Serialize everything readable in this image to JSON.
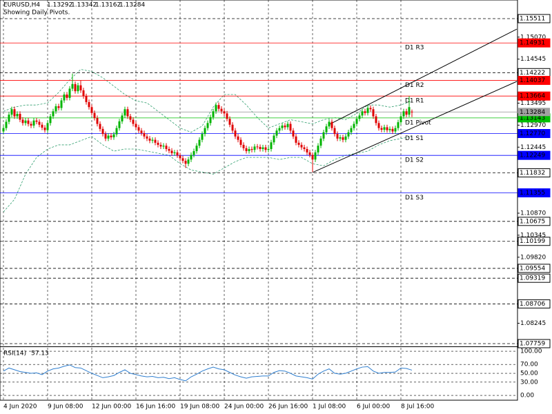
{
  "chart_data": {
    "type": "candlestick",
    "symbol": "EURUSD,H4",
    "subtitle": "Showing Daily Pivots.",
    "colors": {
      "up": "#00b400",
      "down": "#e00000",
      "current": "#a0a0a0"
    },
    "xlim": [
      -1.25,
      186.25
    ],
    "ylim": [
      1.07693,
      1.15955
    ],
    "yticks": [
      {
        "value": 1.1507,
        "label": "1.15070"
      },
      1.14545,
      1.13495,
      {
        "value": 1.1297,
        "label": "1.12970"
      },
      1.12445,
      {
        "value": 1.1087,
        "label": "1.10870"
      },
      1.10345,
      {
        "value": 1.0982,
        "label": "1.09820"
      },
      1.08245
    ],
    "xlabels": [
      {
        "bar": 0,
        "label": "4 Jun 2020"
      },
      {
        "bar": 16,
        "label": "9 Jun 08:00"
      },
      {
        "bar": 32,
        "label": "12 Jun 00:00"
      },
      {
        "bar": 48,
        "label": "16 Jun 16:00"
      },
      {
        "bar": 64,
        "label": "19 Jun 08:00"
      },
      {
        "bar": 80,
        "label": "24 Jun 00:00"
      },
      {
        "bar": 96,
        "label": "26 Jun 16:00"
      },
      {
        "bar": 112,
        "label": "1 Jul 08:00"
      },
      {
        "bar": 128,
        "label": "6 Jul 00:00"
      },
      {
        "bar": 144,
        "label": "8 Jul 16:00"
      }
    ],
    "levels": [
      {
        "price": 1.15511,
        "color": "#000000",
        "style": "dash"
      },
      {
        "price": 1.14931,
        "name": "D1 R3",
        "color": "#ff0000",
        "style": "solid"
      },
      {
        "price": 1.14222,
        "color": "#000000",
        "style": "dash"
      },
      {
        "price": 1.14037,
        "name": "D1 R2",
        "color": "#ff0000",
        "style": "solid"
      },
      {
        "price": 1.13664,
        "name": "D1 R1",
        "color": "#ff0000",
        "style": "solid"
      },
      {
        "price": 1.13143,
        "name": "D1 Pivot",
        "color": "#00c000",
        "style": "solid"
      },
      {
        "price": {
          "value": 1.1277,
          "label": "1.12770"
        },
        "name": "D1 S1",
        "color": "#0000ff",
        "style": "solid"
      },
      {
        "price": 1.12249,
        "name": "D1 S2",
        "color": "#0000ff",
        "style": "solid"
      },
      {
        "price": 1.11832,
        "color": "#000000",
        "style": "dash"
      },
      {
        "price": 1.11355,
        "name": "D1 S3",
        "color": "#0000ff",
        "style": "solid"
      },
      {
        "price": 1.10675,
        "color": "#000000",
        "style": "dash"
      },
      {
        "price": 1.10199,
        "color": "#000000",
        "style": "dash"
      },
      {
        "price": 1.09554,
        "color": "#000000",
        "style": "dash"
      },
      {
        "price": 1.09319,
        "color": "#000000",
        "style": "dash"
      },
      {
        "price": 1.08706,
        "color": "#000000",
        "style": "dash"
      },
      {
        "price": 1.07759,
        "color": "#000000",
        "style": "dash"
      }
    ],
    "ohlc": [
      [
        1.1282,
        1.1296,
        1.1276,
        1.129
      ],
      [
        1.129,
        1.1311,
        1.1284,
        1.1305
      ],
      [
        1.1305,
        1.1328,
        1.1299,
        1.1322
      ],
      [
        1.1322,
        1.1341,
        1.1316,
        1.1335
      ],
      [
        1.1335,
        1.1341,
        1.1312,
        1.1318
      ],
      [
        1.1318,
        1.133,
        1.1312,
        1.1324
      ],
      [
        1.1324,
        1.133,
        1.1304,
        1.131
      ],
      [
        1.131,
        1.1316,
        1.1296,
        1.1302
      ],
      [
        1.1302,
        1.1314,
        1.1296,
        1.1308
      ],
      [
        1.1308,
        1.1314,
        1.1294,
        1.13
      ],
      [
        1.13,
        1.1306,
        1.129,
        1.1296
      ],
      [
        1.1296,
        1.1314,
        1.129,
        1.1308
      ],
      [
        1.1308,
        1.1314,
        1.1299,
        1.1305
      ],
      [
        1.1305,
        1.1311,
        1.1292,
        1.1298
      ],
      [
        1.1298,
        1.1304,
        1.1285,
        1.1291
      ],
      [
        1.1291,
        1.1297,
        1.1279,
        1.1285
      ],
      [
        1.1285,
        1.1308,
        1.1279,
        1.1302
      ],
      [
        1.1302,
        1.1324,
        1.1296,
        1.1318
      ],
      [
        1.1318,
        1.1336,
        1.1312,
        1.133
      ],
      [
        1.133,
        1.1348,
        1.1324,
        1.1342
      ],
      [
        1.1342,
        1.1348,
        1.1332,
        1.1338
      ],
      [
        1.1338,
        1.1362,
        1.1332,
        1.1356
      ],
      [
        1.1356,
        1.1376,
        1.135,
        1.137
      ],
      [
        1.137,
        1.1376,
        1.1356,
        1.1362
      ],
      [
        1.1362,
        1.139,
        1.1356,
        1.1384
      ],
      [
        1.1384,
        1.142,
        1.1378,
        1.1395
      ],
      [
        1.1395,
        1.1401,
        1.1372,
        1.1378
      ],
      [
        1.1378,
        1.1398,
        1.1372,
        1.1392
      ],
      [
        1.1392,
        1.1404,
        1.1374,
        1.138
      ],
      [
        1.138,
        1.1386,
        1.136,
        1.1366
      ],
      [
        1.1366,
        1.1372,
        1.1346,
        1.1352
      ],
      [
        1.1352,
        1.1358,
        1.1334,
        1.134
      ],
      [
        1.134,
        1.1346,
        1.132,
        1.1326
      ],
      [
        1.1326,
        1.1332,
        1.1308,
        1.1314
      ],
      [
        1.1314,
        1.132,
        1.1294,
        1.13
      ],
      [
        1.13,
        1.1306,
        1.1282,
        1.1288
      ],
      [
        1.1288,
        1.1294,
        1.127,
        1.1276
      ],
      [
        1.1276,
        1.1282,
        1.1259,
        1.1265
      ],
      [
        1.1265,
        1.1278,
        1.1259,
        1.1272
      ],
      [
        1.1272,
        1.1278,
        1.1262,
        1.1268
      ],
      [
        1.1268,
        1.1281,
        1.1262,
        1.1275
      ],
      [
        1.1275,
        1.1296,
        1.1269,
        1.129
      ],
      [
        1.129,
        1.1312,
        1.1284,
        1.1306
      ],
      [
        1.1306,
        1.1326,
        1.13,
        1.132
      ],
      [
        1.132,
        1.1341,
        1.1314,
        1.1335
      ],
      [
        1.1335,
        1.1341,
        1.1312,
        1.1318
      ],
      [
        1.1318,
        1.1324,
        1.1304,
        1.131
      ],
      [
        1.131,
        1.1316,
        1.1294,
        1.13
      ],
      [
        1.13,
        1.1306,
        1.1286,
        1.1292
      ],
      [
        1.1292,
        1.1298,
        1.1278,
        1.1284
      ],
      [
        1.1284,
        1.129,
        1.1272,
        1.1278
      ],
      [
        1.1278,
        1.1284,
        1.1264,
        1.127
      ],
      [
        1.127,
        1.1276,
        1.1259,
        1.1265
      ],
      [
        1.1265,
        1.1271,
        1.1254,
        1.126
      ],
      [
        1.126,
        1.1268,
        1.1254,
        1.1262
      ],
      [
        1.1262,
        1.1268,
        1.1249,
        1.1255
      ],
      [
        1.1255,
        1.1261,
        1.1244,
        1.125
      ],
      [
        1.125,
        1.1256,
        1.124,
        1.1246
      ],
      [
        1.1246,
        1.1254,
        1.124,
        1.1248
      ],
      [
        1.1248,
        1.1254,
        1.1234,
        1.124
      ],
      [
        1.124,
        1.1246,
        1.123,
        1.1236
      ],
      [
        1.1236,
        1.1242,
        1.1224,
        1.123
      ],
      [
        1.123,
        1.1238,
        1.1224,
        1.1232
      ],
      [
        1.1232,
        1.1238,
        1.1219,
        1.1225
      ],
      [
        1.1225,
        1.1231,
        1.1212,
        1.1218
      ],
      [
        1.1218,
        1.1224,
        1.1206,
        1.1212
      ],
      [
        1.1212,
        1.1218,
        1.1195,
        1.1205
      ],
      [
        1.1205,
        1.1221,
        1.1199,
        1.1215
      ],
      [
        1.1215,
        1.1232,
        1.1209,
        1.1226
      ],
      [
        1.1226,
        1.1241,
        1.122,
        1.1235
      ],
      [
        1.1235,
        1.1254,
        1.1229,
        1.1248
      ],
      [
        1.1248,
        1.1268,
        1.1242,
        1.1262
      ],
      [
        1.1262,
        1.1282,
        1.1256,
        1.1276
      ],
      [
        1.1276,
        1.1296,
        1.127,
        1.129
      ],
      [
        1.129,
        1.1308,
        1.1284,
        1.1302
      ],
      [
        1.1302,
        1.1322,
        1.1296,
        1.1316
      ],
      [
        1.1316,
        1.1336,
        1.131,
        1.133
      ],
      [
        1.133,
        1.1351,
        1.1324,
        1.1345
      ],
      [
        1.1345,
        1.1351,
        1.133,
        1.1336
      ],
      [
        1.1336,
        1.1342,
        1.1324,
        1.133
      ],
      [
        1.133,
        1.1336,
        1.1319,
        1.1325
      ],
      [
        1.1325,
        1.1331,
        1.1306,
        1.1312
      ],
      [
        1.1312,
        1.1318,
        1.1292,
        1.1298
      ],
      [
        1.1298,
        1.1304,
        1.1278,
        1.1284
      ],
      [
        1.1284,
        1.129,
        1.1264,
        1.127
      ],
      [
        1.127,
        1.1276,
        1.1256,
        1.1262
      ],
      [
        1.1262,
        1.1268,
        1.1244,
        1.125
      ],
      [
        1.125,
        1.1256,
        1.1236,
        1.1242
      ],
      [
        1.1242,
        1.1248,
        1.1229,
        1.1235
      ],
      [
        1.1235,
        1.1246,
        1.1229,
        1.124
      ],
      [
        1.124,
        1.1246,
        1.1232,
        1.1238
      ],
      [
        1.1238,
        1.1252,
        1.1232,
        1.1246
      ],
      [
        1.1246,
        1.1252,
        1.1239,
        1.1245
      ],
      [
        1.1245,
        1.1251,
        1.1234,
        1.124
      ],
      [
        1.124,
        1.125,
        1.1234,
        1.1244
      ],
      [
        1.1244,
        1.125,
        1.1232,
        1.1238
      ],
      [
        1.1238,
        1.1246,
        1.1232,
        1.124
      ],
      [
        1.124,
        1.1262,
        1.1234,
        1.1256
      ],
      [
        1.1256,
        1.1278,
        1.125,
        1.1272
      ],
      [
        1.1272,
        1.129,
        1.1266,
        1.1284
      ],
      [
        1.1284,
        1.1296,
        1.1278,
        1.129
      ],
      [
        1.129,
        1.1302,
        1.1284,
        1.1296
      ],
      [
        1.1296,
        1.1302,
        1.1286,
        1.1292
      ],
      [
        1.1292,
        1.1306,
        1.1286,
        1.13
      ],
      [
        1.13,
        1.1306,
        1.1278,
        1.1284
      ],
      [
        1.1284,
        1.129,
        1.1264,
        1.127
      ],
      [
        1.127,
        1.1276,
        1.1249,
        1.1255
      ],
      [
        1.1255,
        1.1261,
        1.1244,
        1.125
      ],
      [
        1.125,
        1.1256,
        1.1238,
        1.1244
      ],
      [
        1.1244,
        1.125,
        1.1234,
        1.124
      ],
      [
        1.124,
        1.1246,
        1.1226,
        1.1232
      ],
      [
        1.1232,
        1.1238,
        1.122,
        1.1226
      ],
      [
        1.1226,
        1.1232,
        1.1185,
        1.1215
      ],
      [
        1.1215,
        1.1238,
        1.1209,
        1.1232
      ],
      [
        1.1232,
        1.1254,
        1.1226,
        1.1248
      ],
      [
        1.1248,
        1.1271,
        1.1242,
        1.1265
      ],
      [
        1.1265,
        1.1286,
        1.1259,
        1.128
      ],
      [
        1.128,
        1.13,
        1.1274,
        1.1294
      ],
      [
        1.1294,
        1.1311,
        1.1288,
        1.1305
      ],
      [
        1.1305,
        1.1311,
        1.1284,
        1.129
      ],
      [
        1.129,
        1.1296,
        1.127,
        1.1276
      ],
      [
        1.1276,
        1.1282,
        1.1259,
        1.1265
      ],
      [
        1.1265,
        1.1274,
        1.1259,
        1.1268
      ],
      [
        1.1268,
        1.1274,
        1.1256,
        1.1262
      ],
      [
        1.1262,
        1.1276,
        1.1256,
        1.127
      ],
      [
        1.127,
        1.1286,
        1.1264,
        1.128
      ],
      [
        1.128,
        1.1296,
        1.1274,
        1.129
      ],
      [
        1.129,
        1.1306,
        1.1284,
        1.13
      ],
      [
        1.13,
        1.1318,
        1.1294,
        1.1312
      ],
      [
        1.1312,
        1.1326,
        1.1306,
        1.132
      ],
      [
        1.132,
        1.1336,
        1.1314,
        1.133
      ],
      [
        1.133,
        1.1336,
        1.132,
        1.1326
      ],
      [
        1.1326,
        1.1344,
        1.132,
        1.1338
      ],
      [
        1.1338,
        1.1344,
        1.1329,
        1.1335
      ],
      [
        1.1335,
        1.1341,
        1.1312,
        1.1318
      ],
      [
        1.1318,
        1.1324,
        1.1296,
        1.1302
      ],
      [
        1.1302,
        1.1308,
        1.1284,
        1.129
      ],
      [
        1.129,
        1.1296,
        1.128,
        1.1286
      ],
      [
        1.1286,
        1.1298,
        1.128,
        1.1292
      ],
      [
        1.1292,
        1.1298,
        1.1279,
        1.1285
      ],
      [
        1.1285,
        1.1294,
        1.1279,
        1.1288
      ],
      [
        1.1288,
        1.1294,
        1.1276,
        1.1282
      ],
      [
        1.1282,
        1.1296,
        1.1276,
        1.129
      ],
      [
        1.129,
        1.131,
        1.1284,
        1.1304
      ],
      [
        1.1304,
        1.1324,
        1.1298,
        1.1318
      ],
      [
        1.1318,
        1.1336,
        1.1312,
        1.133
      ],
      [
        1.133,
        1.1336,
        1.1316,
        1.1322
      ],
      [
        1.1322,
        1.1366,
        1.1316,
        1.134
      ],
      [
        1.13292,
        1.13342,
        1.13162,
        1.13284
      ]
    ],
    "bands": {
      "color": "#2f9e6e",
      "x": [
        0,
        4,
        8,
        12,
        16,
        20,
        24,
        28,
        32,
        36,
        40,
        44,
        48,
        52,
        56,
        60,
        64,
        68,
        72,
        76,
        80,
        84,
        88,
        92,
        96,
        100,
        104,
        108,
        112,
        116,
        120,
        124,
        128,
        132,
        136,
        140,
        144,
        148
      ],
      "upper": [
        1.133,
        1.134,
        1.1345,
        1.1345,
        1.135,
        1.1375,
        1.1405,
        1.143,
        1.1425,
        1.141,
        1.139,
        1.137,
        1.1355,
        1.135,
        1.133,
        1.131,
        1.129,
        1.128,
        1.1295,
        1.134,
        1.137,
        1.137,
        1.1345,
        1.1315,
        1.129,
        1.13,
        1.131,
        1.1305,
        1.13,
        1.131,
        1.1315,
        1.131,
        1.1325,
        1.1345,
        1.1345,
        1.134,
        1.1345,
        1.1355
      ],
      "lower": [
        1.109,
        1.112,
        1.118,
        1.122,
        1.124,
        1.125,
        1.125,
        1.126,
        1.127,
        1.125,
        1.1235,
        1.124,
        1.124,
        1.1235,
        1.123,
        1.1225,
        1.1205,
        1.119,
        1.1185,
        1.118,
        1.1195,
        1.121,
        1.122,
        1.122,
        1.122,
        1.1215,
        1.122,
        1.122,
        1.1205,
        1.12,
        1.1215,
        1.1225,
        1.123,
        1.1235,
        1.125,
        1.126,
        1.1265,
        1.127
      ]
    },
    "channel": [
      {
        "x": [
          118.25,
          186
        ],
        "y": [
          1.12993,
          1.1526
        ]
      },
      {
        "x": [
          112,
          186
        ],
        "y": [
          1.11841,
          1.14013
        ]
      }
    ],
    "rsi": {
      "name": "RSI(14)",
      "color": "#2f7fd0",
      "ylim": [
        -10.9,
        109.4
      ],
      "yticks": [
        {
          "value": 100,
          "label": "100.00"
        },
        {
          "value": 70,
          "label": "70.00"
        },
        {
          "value": 50,
          "label": "50.00"
        },
        {
          "value": 30,
          "label": "30.00"
        },
        {
          "value": 0,
          "label": "0.00"
        }
      ],
      "x": [
        0,
        2,
        4,
        6,
        8,
        10,
        12,
        14,
        16,
        18,
        20,
        22,
        24,
        26,
        28,
        30,
        32,
        34,
        36,
        38,
        40,
        42,
        44,
        46,
        48,
        50,
        52,
        54,
        56,
        58,
        60,
        62,
        64,
        66,
        68,
        70,
        72,
        74,
        76,
        78,
        80,
        82,
        84,
        86,
        88,
        90,
        92,
        94,
        96,
        98,
        100,
        102,
        104,
        106,
        108,
        110,
        112,
        114,
        116,
        118,
        120,
        122,
        124,
        126,
        128,
        130,
        132,
        134,
        136,
        138,
        140,
        142,
        144,
        146,
        148
      ],
      "values": [
        55,
        62,
        58,
        54,
        52,
        50,
        51,
        47,
        55,
        60,
        62,
        66,
        69,
        63,
        62,
        56,
        50,
        45,
        40,
        42,
        45,
        52,
        58,
        50,
        47,
        44,
        42,
        43,
        40,
        41,
        38,
        40,
        36,
        33,
        42,
        48,
        55,
        60,
        64,
        60,
        58,
        52,
        46,
        42,
        39,
        42,
        43,
        44,
        44,
        52,
        56,
        55,
        50,
        44,
        42,
        40,
        37,
        48,
        55,
        60,
        50,
        48,
        50,
        55,
        60,
        64,
        65,
        55,
        50,
        52,
        52,
        53,
        62,
        61,
        57.13
      ]
    }
  }
}
